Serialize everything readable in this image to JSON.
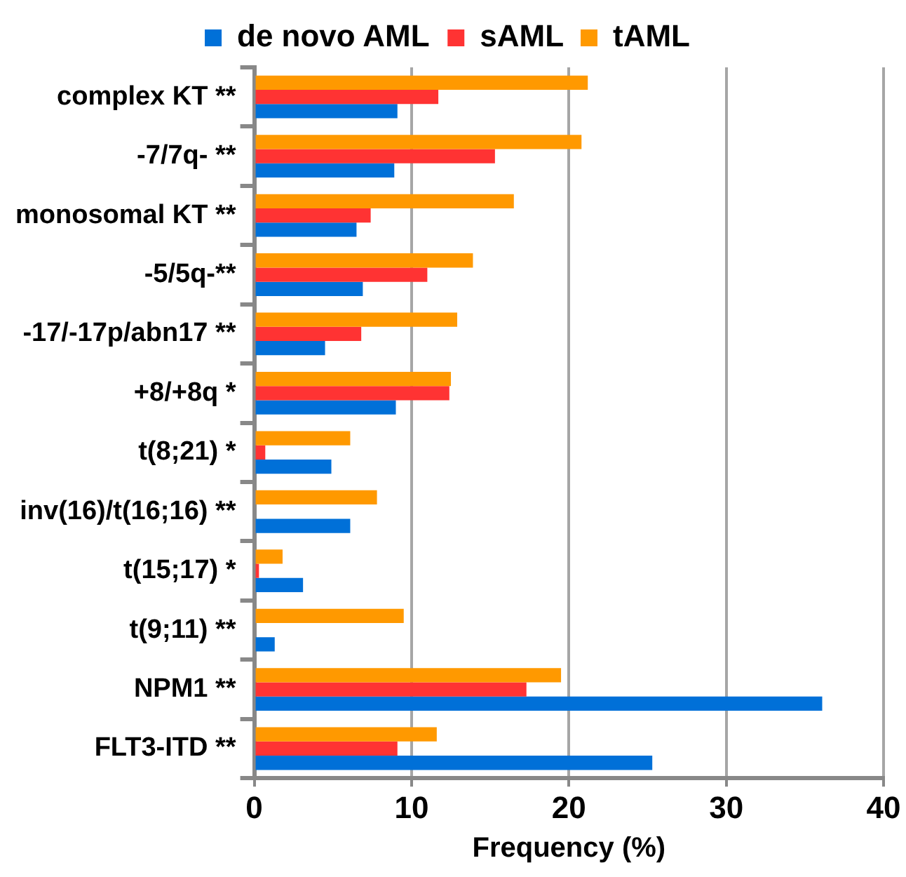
{
  "chart_data": {
    "type": "bar",
    "orientation": "horizontal",
    "xlabel": "Frequency (%)",
    "categories": [
      "complex KT **",
      "-7/7q- **",
      "monosomal KT **",
      "-5/5q-**",
      "-17/-17p/abn17 **",
      "+8/+8q *",
      "t(8;21) *",
      "inv(16)/t(16;16) **",
      "t(15;17) *",
      "t(9;11) **",
      "NPM1 **",
      "FLT3-ITD **"
    ],
    "series": [
      {
        "name": "de novo AML",
        "color": "#0070d8",
        "values": [
          9.1,
          8.9,
          6.5,
          6.9,
          4.5,
          9.0,
          4.9,
          6.1,
          3.1,
          1.3,
          36.1,
          25.3
        ]
      },
      {
        "name": "sAML",
        "color": "#ff3333",
        "values": [
          11.7,
          15.3,
          7.4,
          11.0,
          6.8,
          12.4,
          0.7,
          0,
          0.3,
          0,
          17.3,
          9.1
        ]
      },
      {
        "name": "tAML",
        "color": "#ff9900",
        "values": [
          21.2,
          20.8,
          16.5,
          13.9,
          12.9,
          12.5,
          6.1,
          7.8,
          1.8,
          9.5,
          19.5,
          11.6
        ]
      }
    ],
    "xlim": [
      0,
      40
    ],
    "xticks": [
      0,
      10,
      20,
      30,
      40
    ],
    "grid": "x",
    "legend": "top"
  }
}
